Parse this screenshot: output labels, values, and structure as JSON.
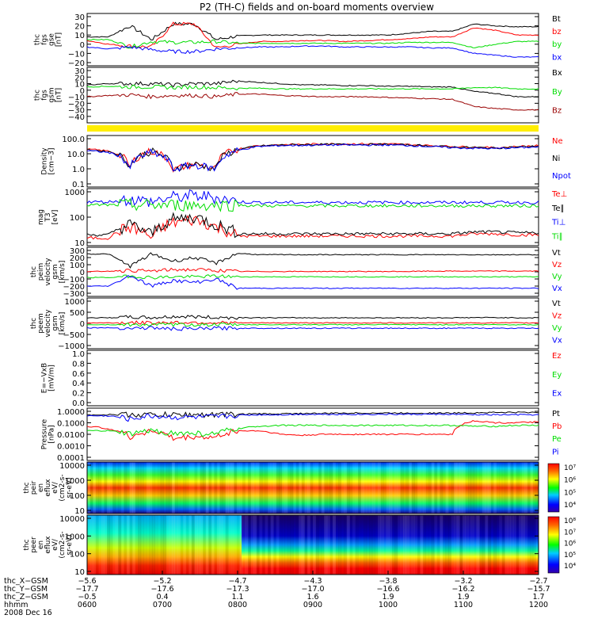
{
  "title": "P2 (TH-C) fields and on-board moments overview",
  "colors": {
    "black": "#000000",
    "red": "#ff0000",
    "green": "#00dd00",
    "blue": "#0000ff",
    "darkred": "#990000",
    "yellow": "#ffee00"
  },
  "chart_data": [
    {
      "type": "line",
      "id": "fgs_gse",
      "ylabel": [
        "thc",
        "fgs",
        "gse",
        "[nT]"
      ],
      "ylim": [
        -20,
        30
      ],
      "ticks": [
        "30",
        "20",
        "10",
        "0",
        "−10",
        "−20"
      ],
      "series": [
        {
          "name": "Bt",
          "color": "#000000",
          "values": [
            8,
            8,
            20,
            5,
            22,
            22,
            5,
            9,
            10,
            10,
            10,
            10,
            10,
            10,
            10,
            12,
            14,
            14,
            22,
            20,
            19,
            19
          ]
        },
        {
          "name": "bz",
          "color": "#ff0000",
          "values": [
            4,
            0,
            -2,
            -3,
            22,
            22,
            -4,
            0,
            3,
            3,
            4,
            4,
            3,
            4,
            5,
            6,
            8,
            8,
            18,
            15,
            10,
            10
          ]
        },
        {
          "name": "by",
          "color": "#00dd00",
          "values": [
            5,
            5,
            -3,
            3,
            2,
            2,
            3,
            1,
            1,
            1,
            1,
            1,
            1,
            1,
            1,
            2,
            2,
            2,
            -4,
            0,
            3,
            3
          ]
        },
        {
          "name": "bx",
          "color": "#0000ff",
          "values": [
            -3,
            -5,
            -3,
            -6,
            -8,
            -8,
            -5,
            -4,
            -3,
            -3,
            -2,
            -2,
            -3,
            -3,
            -3,
            -3,
            -4,
            -4,
            -10,
            -12,
            -14,
            -14
          ]
        }
      ]
    },
    {
      "type": "line",
      "id": "fgs_gsm",
      "ylabel": [
        "thc",
        "fgs",
        "gsm",
        "[nT]"
      ],
      "ylim": [
        -45,
        30
      ],
      "ticks": [
        "30",
        "20",
        "10",
        "0",
        "−10",
        "−20",
        "−30",
        "−40"
      ],
      "series": [
        {
          "name": "Bx",
          "color": "#000000",
          "values": [
            8,
            10,
            10,
            10,
            8,
            10,
            10,
            14,
            12,
            10,
            8,
            8,
            7,
            7,
            6,
            6,
            5,
            5,
            -2,
            -5,
            -10,
            -10
          ]
        },
        {
          "name": "By",
          "color": "#00dd00",
          "values": [
            5,
            6,
            5,
            5,
            4,
            5,
            4,
            3,
            3,
            2,
            2,
            2,
            2,
            2,
            2,
            2,
            2,
            2,
            4,
            4,
            2,
            2
          ]
        },
        {
          "name": "Bz",
          "color": "#990000",
          "values": [
            -10,
            -8,
            -7,
            -10,
            -8,
            -8,
            -10,
            -6,
            -6,
            -8,
            -9,
            -10,
            -10,
            -10,
            -11,
            -12,
            -13,
            -14,
            -25,
            -28,
            -30,
            -30
          ]
        }
      ]
    },
    {
      "type": "line",
      "id": "density",
      "ylabel": [
        "Density",
        "[cm−3]"
      ],
      "ylim": [
        0.1,
        100
      ],
      "scale": "log",
      "ticks": [
        "100.0",
        "10.0",
        "1.0",
        "0.1"
      ],
      "series": [
        {
          "name": "Ne",
          "color": "#ff0000",
          "values": [
            20,
            15,
            1,
            15,
            0.8,
            2,
            0.9,
            20,
            35,
            40,
            42,
            45,
            45,
            45,
            45,
            40,
            35,
            30,
            28,
            25,
            30,
            35
          ]
        },
        {
          "name": "Ni",
          "color": "#000000",
          "values": [
            18,
            14,
            1.2,
            14,
            1,
            2,
            1,
            18,
            33,
            38,
            40,
            42,
            42,
            42,
            42,
            38,
            33,
            28,
            26,
            24,
            28,
            32
          ]
        },
        {
          "name": "Npot",
          "color": "#0000ff",
          "values": [
            16,
            12,
            1,
            12,
            0.9,
            1.8,
            0.9,
            16,
            30,
            35,
            36,
            38,
            38,
            38,
            38,
            35,
            30,
            25,
            23,
            22,
            25,
            28
          ]
        }
      ]
    },
    {
      "type": "line",
      "id": "temperature",
      "ylabel": [
        "mag",
        "T3",
        "[eV]"
      ],
      "ylim": [
        10,
        1000
      ],
      "scale": "log",
      "ticks": [
        "1000",
        "100",
        "10"
      ],
      "series": [
        {
          "name": "Te⊥",
          "color": "#ff0000",
          "values": [
            15,
            15,
            40,
            15,
            60,
            80,
            40,
            18,
            18,
            18,
            18,
            18,
            18,
            18,
            18,
            18,
            18,
            18,
            22,
            22,
            20,
            20
          ]
        },
        {
          "name": "Te∥",
          "color": "#000000",
          "values": [
            20,
            20,
            50,
            20,
            80,
            100,
            50,
            22,
            22,
            22,
            22,
            22,
            22,
            22,
            22,
            22,
            22,
            22,
            26,
            26,
            24,
            24
          ]
        },
        {
          "name": "Ti⊥",
          "color": "#0000ff",
          "values": [
            400,
            400,
            500,
            400,
            600,
            700,
            600,
            400,
            380,
            380,
            380,
            380,
            380,
            380,
            380,
            380,
            380,
            380,
            380,
            380,
            380,
            380
          ]
        },
        {
          "name": "Ti∥",
          "color": "#00dd00",
          "values": [
            300,
            300,
            300,
            300,
            300,
            300,
            300,
            300,
            280,
            280,
            280,
            280,
            280,
            280,
            280,
            280,
            280,
            280,
            280,
            280,
            280,
            280
          ]
        }
      ]
    },
    {
      "type": "line",
      "id": "peim_velocity",
      "ylabel": [
        "thc",
        "peim",
        "velocity",
        "gsm",
        "[km/s]"
      ],
      "ylim": [
        -300,
        300
      ],
      "ticks": [
        "300",
        "200",
        "100",
        "0",
        "−100",
        "−200",
        "−300"
      ],
      "series": [
        {
          "name": "Vt",
          "color": "#000000",
          "values": [
            250,
            250,
            80,
            250,
            150,
            200,
            120,
            260,
            240,
            240,
            240,
            240,
            240,
            240,
            240,
            240,
            240,
            240,
            240,
            240,
            240,
            240
          ]
        },
        {
          "name": "Vz",
          "color": "#ff0000",
          "values": [
            0,
            10,
            20,
            10,
            30,
            30,
            20,
            5,
            5,
            5,
            5,
            5,
            5,
            5,
            5,
            5,
            10,
            10,
            10,
            10,
            10,
            10
          ]
        },
        {
          "name": "Vy",
          "color": "#00dd00",
          "values": [
            -80,
            -80,
            -60,
            -80,
            -70,
            -70,
            -60,
            -70,
            -70,
            -70,
            -70,
            -70,
            -70,
            -70,
            -70,
            -70,
            -70,
            -70,
            -70,
            -70,
            -70,
            -70
          ]
        },
        {
          "name": "Vx",
          "color": "#0000ff",
          "values": [
            -200,
            -200,
            -50,
            -200,
            -120,
            -150,
            -100,
            -230,
            -230,
            -230,
            -230,
            -230,
            -230,
            -230,
            -230,
            -230,
            -230,
            -230,
            -230,
            -230,
            -230,
            -230
          ]
        }
      ]
    },
    {
      "type": "line",
      "id": "peem_velocity",
      "ylabel": [
        "thc",
        "peem",
        "velocity",
        "gsm",
        "[km/s]"
      ],
      "ylim": [
        -1000,
        1000
      ],
      "ticks": [
        "1000",
        "500",
        "0",
        "−500",
        "−1000"
      ],
      "series": [
        {
          "name": "Vt",
          "color": "#000000",
          "values": [
            250,
            250,
            280,
            250,
            300,
            300,
            260,
            260,
            250,
            250,
            250,
            250,
            250,
            250,
            250,
            250,
            250,
            250,
            260,
            260,
            250,
            250
          ]
        },
        {
          "name": "Vz",
          "color": "#ff0000",
          "values": [
            20,
            20,
            30,
            20,
            40,
            40,
            30,
            20,
            20,
            20,
            20,
            20,
            20,
            20,
            20,
            20,
            20,
            20,
            20,
            20,
            20,
            20
          ]
        },
        {
          "name": "Vy",
          "color": "#00dd00",
          "values": [
            -60,
            -60,
            -60,
            -60,
            -60,
            -60,
            -60,
            -60,
            -60,
            -60,
            -60,
            -60,
            -60,
            -60,
            -60,
            -60,
            -60,
            -60,
            -60,
            -60,
            -60,
            -60
          ]
        },
        {
          "name": "Vx",
          "color": "#0000ff",
          "values": [
            -200,
            -200,
            -220,
            -200,
            -250,
            -250,
            -220,
            -220,
            -220,
            -220,
            -220,
            -220,
            -220,
            -220,
            -220,
            -220,
            -220,
            -220,
            -220,
            -220,
            -220,
            -220
          ]
        }
      ]
    },
    {
      "type": "line",
      "id": "efield",
      "ylabel": [
        "E=−VxB",
        "[mV/m]"
      ],
      "ylim": [
        0,
        1
      ],
      "ticks": [
        "1.0",
        "0.8",
        "0.6",
        "0.4",
        "0.2",
        "0.0"
      ],
      "series": [
        {
          "name": "Ez",
          "color": "#ff0000",
          "values": []
        },
        {
          "name": "Ey",
          "color": "#00dd00",
          "values": []
        },
        {
          "name": "Ex",
          "color": "#0000ff",
          "values": []
        }
      ]
    },
    {
      "type": "line",
      "id": "pressure",
      "ylabel": [
        "Pressure",
        "[nPa]"
      ],
      "ylim": [
        0.0001,
        1
      ],
      "scale": "log",
      "ticks": [
        "1.0000",
        "0.1000",
        "0.0100",
        "0.0010",
        "0.0001"
      ],
      "series": [
        {
          "name": "Pt",
          "color": "#000000",
          "values": [
            0.5,
            0.5,
            0.5,
            0.5,
            0.5,
            0.5,
            0.5,
            0.55,
            0.6,
            0.6,
            0.65,
            0.65,
            0.7,
            0.7,
            0.7,
            0.7,
            0.7,
            0.7,
            0.75,
            0.8,
            0.8,
            0.8
          ]
        },
        {
          "name": "Pb",
          "color": "#ff0000",
          "values": [
            0.05,
            0.03,
            0.005,
            0.02,
            0.004,
            0.006,
            0.005,
            0.02,
            0.02,
            0.01,
            0.008,
            0.01,
            0.01,
            0.01,
            0.01,
            0.01,
            0.01,
            0.01,
            0.15,
            0.1,
            0.1,
            0.12
          ]
        },
        {
          "name": "Pe",
          "color": "#00dd00",
          "values": [
            0.02,
            0.02,
            0.01,
            0.02,
            0.012,
            0.012,
            0.01,
            0.03,
            0.05,
            0.06,
            0.06,
            0.06,
            0.06,
            0.06,
            0.06,
            0.06,
            0.06,
            0.06,
            0.05,
            0.05,
            0.06,
            0.06
          ]
        },
        {
          "name": "Pi",
          "color": "#0000ff",
          "values": [
            0.4,
            0.4,
            0.2,
            0.4,
            0.3,
            0.3,
            0.3,
            0.45,
            0.5,
            0.5,
            0.55,
            0.55,
            0.55,
            0.55,
            0.55,
            0.55,
            0.55,
            0.55,
            0.5,
            0.5,
            0.5,
            0.5
          ]
        }
      ]
    },
    {
      "type": "heatmap",
      "id": "peir_eflux",
      "ylabel": [
        "thc",
        "peir",
        "en",
        "eflux",
        "eV/",
        "(cm2-s-",
        "sr-eV)"
      ],
      "scale": "log",
      "ticks": [
        "10000",
        "1000",
        "100",
        "10"
      ],
      "colorbar_ticks": [
        "10⁷",
        "10⁶",
        "10⁵",
        "10⁴"
      ]
    },
    {
      "type": "heatmap",
      "id": "peer_eflux",
      "ylabel": [
        "thc",
        "peer",
        "en",
        "eflux",
        "eV/",
        "(cm2-s-",
        "sr-eV)"
      ],
      "scale": "log",
      "ticks": [
        "10000",
        "1000",
        "100",
        "10"
      ],
      "colorbar_ticks": [
        "10⁸",
        "10⁷",
        "10⁶",
        "10⁵",
        "10⁴"
      ]
    }
  ],
  "xaxis": {
    "rows": [
      {
        "label": "thc_X−GSM",
        "values": [
          "−5.6",
          "−5.2",
          "−4.7",
          "−4.3",
          "−3.8",
          "−3.2",
          "−2.7"
        ]
      },
      {
        "label": "thc_Y−GSM",
        "values": [
          "−17.7",
          "−17.6",
          "−17.3",
          "−17.0",
          "−16.6",
          "−16.2",
          "−15.7"
        ]
      },
      {
        "label": "thc_Z−GSM",
        "values": [
          "−0.5",
          "0.4",
          "1.1",
          "1.6",
          "1.9",
          "1.9",
          "1.7"
        ]
      },
      {
        "label": "hhmm",
        "values": [
          "0600",
          "0700",
          "0800",
          "0900",
          "1000",
          "1100",
          "1200"
        ]
      }
    ],
    "date": "2008 Dec 16"
  }
}
